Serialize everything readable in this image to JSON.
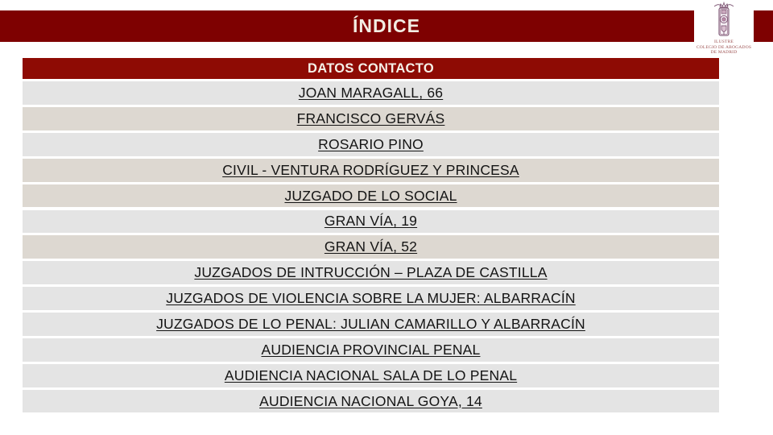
{
  "slide": {
    "title": "ÍNDICE",
    "colors": {
      "header_bar": "#7E0101",
      "table_header_bg": "#8E0B04",
      "row_light": "#E4E4E4",
      "row_warm": "#DDD8D1",
      "title_text": "#F2EDE3",
      "link_text": "#141414",
      "logo_caption_text": "#9C5050"
    },
    "logo": {
      "emblem_icon": "coat-of-arms-icon",
      "caption_lines": [
        "ILUSTRE",
        "COLEGIO DE ABOGADOS",
        "DE MADRID"
      ]
    },
    "toc": {
      "header": "DATOS CONTACTO",
      "items": [
        {
          "label": "JOAN MARAGALL, 66",
          "tone": "light"
        },
        {
          "label": "FRANCISCO GERVÁS",
          "tone": "warm"
        },
        {
          "label": "ROSARIO PINO",
          "tone": "light"
        },
        {
          "label": "CIVIL - VENTURA RODRÍGUEZ Y PRINCESA",
          "tone": "warm"
        },
        {
          "label": "JUZGADO DE LO SOCIAL",
          "tone": "warm"
        },
        {
          "label": "GRAN VÍA, 19",
          "tone": "light"
        },
        {
          "label": "GRAN VÍA, 52",
          "tone": "warm"
        },
        {
          "label": "JUZGADOS DE INTRUCCIÓN – PLAZA DE CASTILLA",
          "tone": "light"
        },
        {
          "label": "JUZGADOS DE VIOLENCIA SOBRE LA MUJER: ALBARRACÍN",
          "tone": "light"
        },
        {
          "label": "JUZGADOS DE LO PENAL: JULIAN CAMARILLO Y ALBARRACÍN",
          "tone": "light"
        },
        {
          "label": "AUDIENCIA PROVINCIAL PENAL",
          "tone": "light"
        },
        {
          "label": "AUDIENCIA NACIONAL SALA DE LO PENAL",
          "tone": "light"
        },
        {
          "label": "AUDIENCIA NACIONAL GOYA, 14",
          "tone": "light"
        }
      ]
    }
  }
}
